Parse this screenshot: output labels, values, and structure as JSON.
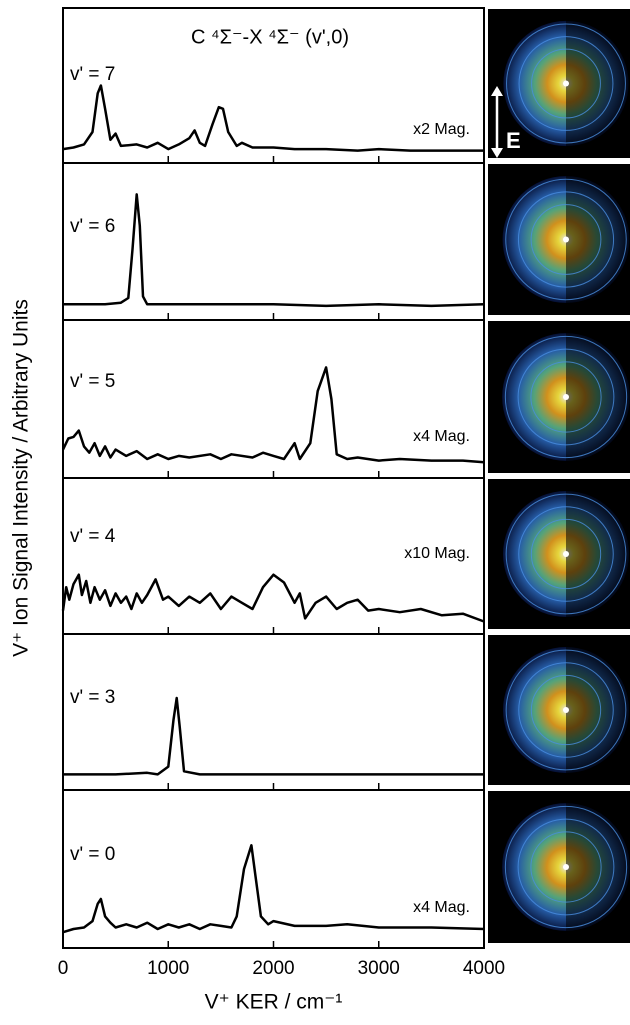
{
  "ylabel": "V⁺ Ion Signal Intensity / Arbitrary Units",
  "image_label": "E",
  "chart_data": [
    {
      "type": "line",
      "title": "C ⁴Σ⁻-X ⁴Σ⁻ (v',0)",
      "label": "v' = 7",
      "annotation": "x2 Mag.",
      "color": "#000000",
      "xlim": [
        0,
        4000
      ],
      "xticks": [
        0,
        1000,
        2000,
        3000,
        4000
      ],
      "ylim": [
        0,
        1
      ],
      "x": [
        0,
        100,
        200,
        280,
        330,
        360,
        400,
        450,
        500,
        550,
        700,
        800,
        900,
        1000,
        1100,
        1200,
        1250,
        1300,
        1350,
        1420,
        1480,
        1520,
        1570,
        1650,
        1700,
        1800,
        2000,
        2200,
        2500,
        2800,
        3000,
        3300,
        3600,
        4000
      ],
      "values": [
        0.09,
        0.1,
        0.12,
        0.2,
        0.45,
        0.5,
        0.35,
        0.15,
        0.19,
        0.11,
        0.12,
        0.1,
        0.13,
        0.09,
        0.12,
        0.16,
        0.21,
        0.13,
        0.11,
        0.25,
        0.36,
        0.35,
        0.2,
        0.11,
        0.13,
        0.1,
        0.1,
        0.09,
        0.09,
        0.08,
        0.09,
        0.08,
        0.08,
        0.08
      ]
    },
    {
      "type": "line",
      "label": "v' = 6",
      "color": "#000000",
      "xlim": [
        0,
        4000
      ],
      "xticks": [
        0,
        1000,
        2000,
        3000,
        4000
      ],
      "ylim": [
        0,
        1
      ],
      "x": [
        0,
        200,
        400,
        550,
        620,
        660,
        700,
        730,
        760,
        800,
        1000,
        1500,
        2000,
        2500,
        3000,
        3500,
        4000
      ],
      "values": [
        0.1,
        0.1,
        0.1,
        0.11,
        0.14,
        0.45,
        0.8,
        0.6,
        0.15,
        0.1,
        0.1,
        0.1,
        0.1,
        0.09,
        0.1,
        0.09,
        0.1
      ]
    },
    {
      "type": "line",
      "label": "v' = 5",
      "annotation": "x4 Mag.",
      "color": "#000000",
      "xlim": [
        0,
        4000
      ],
      "xticks": [
        0,
        1000,
        2000,
        3000,
        4000
      ],
      "ylim": [
        0,
        1
      ],
      "x": [
        0,
        50,
        100,
        150,
        200,
        250,
        300,
        350,
        400,
        450,
        500,
        600,
        700,
        800,
        900,
        1000,
        1100,
        1200,
        1400,
        1500,
        1600,
        1800,
        1900,
        2000,
        2100,
        2200,
        2250,
        2350,
        2420,
        2500,
        2550,
        2600,
        2700,
        2800,
        3000,
        3200,
        3500,
        3800,
        4000
      ],
      "values": [
        0.18,
        0.25,
        0.26,
        0.3,
        0.2,
        0.16,
        0.22,
        0.14,
        0.2,
        0.13,
        0.18,
        0.14,
        0.17,
        0.12,
        0.15,
        0.12,
        0.14,
        0.13,
        0.15,
        0.12,
        0.15,
        0.13,
        0.16,
        0.14,
        0.12,
        0.22,
        0.12,
        0.22,
        0.55,
        0.7,
        0.5,
        0.15,
        0.12,
        0.13,
        0.11,
        0.12,
        0.11,
        0.11,
        0.1
      ]
    },
    {
      "type": "line",
      "label": "v' = 4",
      "annotation": "x10 Mag.",
      "color": "#000000",
      "xlim": [
        0,
        4000
      ],
      "xticks": [
        0,
        1000,
        2000,
        3000,
        4000
      ],
      "ylim": [
        0,
        1
      ],
      "x": [
        0,
        30,
        60,
        100,
        150,
        180,
        220,
        260,
        300,
        350,
        400,
        450,
        500,
        550,
        600,
        650,
        700,
        750,
        800,
        880,
        950,
        1000,
        1100,
        1200,
        1300,
        1400,
        1500,
        1600,
        1700,
        1800,
        1900,
        2000,
        2100,
        2200,
        2250,
        2300,
        2400,
        2500,
        2600,
        2700,
        2800,
        2900,
        3000,
        3200,
        3400,
        3600,
        3800,
        4000
      ],
      "values": [
        0.15,
        0.3,
        0.22,
        0.32,
        0.38,
        0.25,
        0.34,
        0.2,
        0.3,
        0.22,
        0.28,
        0.18,
        0.26,
        0.2,
        0.24,
        0.16,
        0.26,
        0.2,
        0.25,
        0.35,
        0.22,
        0.24,
        0.18,
        0.24,
        0.2,
        0.26,
        0.16,
        0.24,
        0.2,
        0.16,
        0.3,
        0.38,
        0.33,
        0.2,
        0.26,
        0.1,
        0.2,
        0.24,
        0.16,
        0.2,
        0.22,
        0.15,
        0.16,
        0.14,
        0.16,
        0.12,
        0.13,
        0.08
      ]
    },
    {
      "type": "line",
      "label": "v' = 3",
      "color": "#000000",
      "xlim": [
        0,
        4000
      ],
      "xticks": [
        0,
        1000,
        2000,
        3000,
        4000
      ],
      "ylim": [
        0,
        1
      ],
      "x": [
        0,
        500,
        800,
        900,
        1000,
        1050,
        1080,
        1110,
        1150,
        1300,
        2000,
        3000,
        4000
      ],
      "values": [
        0.1,
        0.1,
        0.11,
        0.1,
        0.15,
        0.45,
        0.59,
        0.4,
        0.12,
        0.1,
        0.1,
        0.1,
        0.1
      ]
    },
    {
      "type": "line",
      "label": "v' = 0",
      "annotation": "x4 Mag.",
      "color": "#000000",
      "xlabel": "V⁺ KER / cm⁻¹",
      "xlim": [
        0,
        4000
      ],
      "xticks": [
        0,
        1000,
        2000,
        3000,
        4000
      ],
      "ylim": [
        0,
        1
      ],
      "x": [
        0,
        100,
        200,
        280,
        330,
        360,
        400,
        450,
        500,
        600,
        700,
        800,
        900,
        1000,
        1100,
        1200,
        1300,
        1400,
        1500,
        1600,
        1650,
        1720,
        1790,
        1830,
        1880,
        1950,
        2000,
        2200,
        2500,
        2700,
        3000,
        3500,
        4000
      ],
      "values": [
        0.1,
        0.12,
        0.13,
        0.17,
        0.28,
        0.31,
        0.2,
        0.16,
        0.13,
        0.15,
        0.13,
        0.16,
        0.12,
        0.15,
        0.13,
        0.15,
        0.12,
        0.15,
        0.14,
        0.13,
        0.2,
        0.5,
        0.65,
        0.45,
        0.2,
        0.15,
        0.17,
        0.14,
        0.14,
        0.15,
        0.13,
        0.13,
        0.12
      ]
    }
  ]
}
